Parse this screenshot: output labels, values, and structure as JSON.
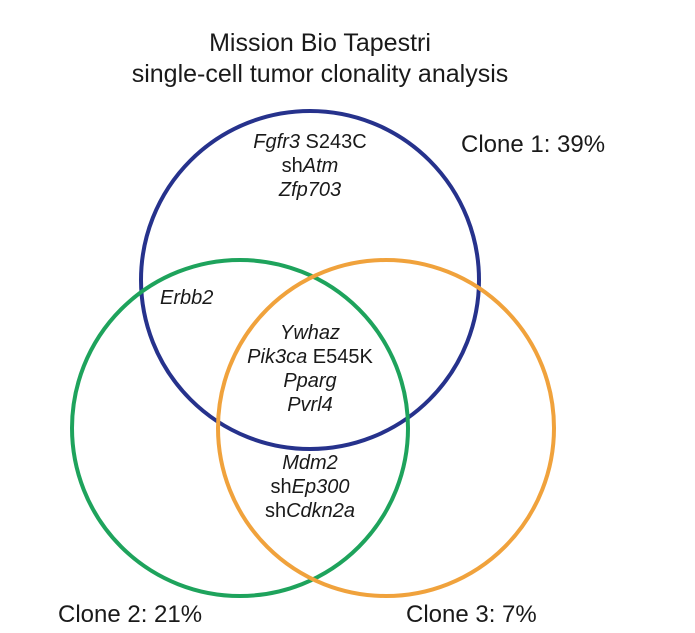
{
  "title": {
    "line1": "Mission Bio Tapestri",
    "line2": "single-cell tumor clonality analysis"
  },
  "clones": [
    {
      "label": "Clone 1: 39%",
      "color": "#26328c"
    },
    {
      "label": "Clone 2: 21%",
      "color": "#1ea35c"
    },
    {
      "label": "Clone 3: 7%",
      "color": "#f0a23c"
    }
  ],
  "regions": {
    "clone1_only": [
      {
        "gene": "Fgfr3",
        "suffix": " S243C"
      },
      {
        "prefix": "sh",
        "gene": "Atm"
      },
      {
        "gene": "Zfp703"
      }
    ],
    "clone1_clone2": [
      {
        "gene": "Erbb2"
      }
    ],
    "all_three": [
      {
        "gene": "Ywhaz"
      },
      {
        "gene": "Pik3ca",
        "suffix": " E545K"
      },
      {
        "gene": "Pparg"
      },
      {
        "gene": "Pvrl4"
      }
    ],
    "clone2_clone3": [
      {
        "gene": "Mdm2"
      },
      {
        "prefix": "sh",
        "gene": "Ep300"
      },
      {
        "prefix": "sh",
        "gene": "Cdkn2a"
      }
    ]
  }
}
